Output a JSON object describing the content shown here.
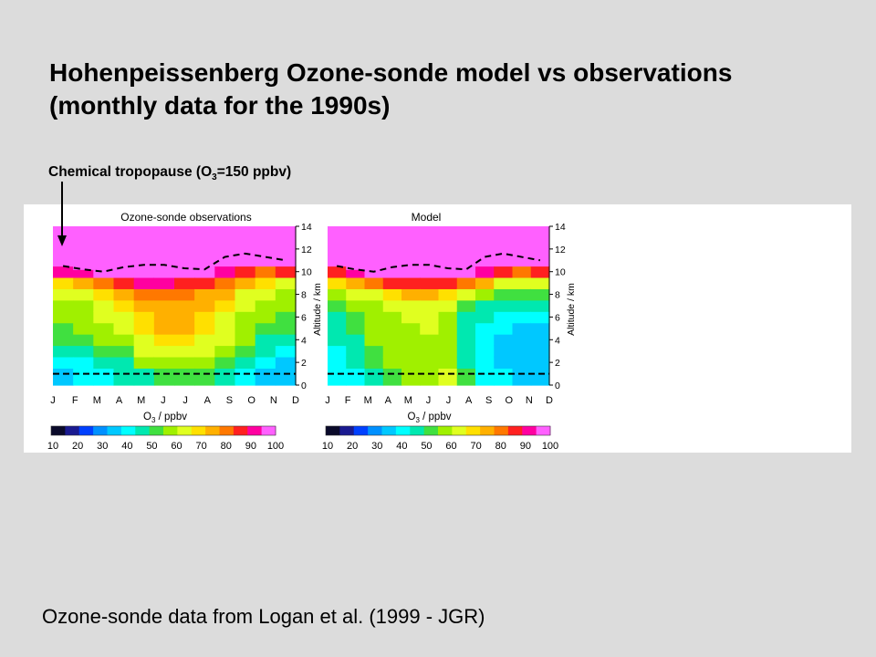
{
  "slide": {
    "title_line1": "Hohenpeissenberg Ozone-sonde model vs observations",
    "title_line2": "(monthly data for the 1990s)",
    "tropopause_caption_pre": "Chemical tropopause (O",
    "tropopause_caption_sub": "3",
    "tropopause_caption_post": "=150 ppbv)",
    "source_note": "Ozone-sonde data from Logan et al. (1999 - JGR)"
  },
  "colors": {
    "background": "#dcdcdc",
    "panel": "#ffffff",
    "colorbar": [
      "#0a0a2a",
      "#1a1a90",
      "#0040ff",
      "#0090ff",
      "#00c8ff",
      "#00ffff",
      "#00e8b0",
      "#40e040",
      "#a0f000",
      "#e0ff20",
      "#ffe000",
      "#ffb000",
      "#ff7800",
      "#ff2020",
      "#ff00a0",
      "#ff60ff"
    ]
  },
  "chart_data": [
    {
      "type": "heatmap",
      "title": "Ozone-sonde observations",
      "xlabel_pre": "O",
      "xlabel_sub": "3",
      "xlabel_post": " / ppbv",
      "ylabel": "Altitude / km",
      "x_ticks": [
        "J",
        "F",
        "M",
        "A",
        "M",
        "J",
        "J",
        "A",
        "S",
        "O",
        "N",
        "D"
      ],
      "y_ticks": [
        "0",
        "2",
        "4",
        "6",
        "8",
        "10",
        "12",
        "14"
      ],
      "ylim": [
        0,
        14
      ],
      "colorbar_ticks": [
        "10",
        "20",
        "30",
        "40",
        "50",
        "60",
        "70",
        "80",
        "90",
        "100"
      ],
      "colorbar_range": [
        10,
        100
      ],
      "tropopause_km": [
        10.5,
        10.2,
        10.0,
        10.4,
        10.6,
        10.6,
        10.3,
        10.2,
        11.3,
        11.6,
        11.3,
        11.0
      ],
      "surface_line_km": 1.0,
      "fields": {
        "altitudes_km": [
          1,
          2,
          3,
          4,
          5,
          6,
          7,
          8,
          9,
          10,
          11
        ],
        "values_ppbv": [
          [
            38,
            40,
            45,
            50,
            52,
            55,
            58,
            62,
            70,
            90,
            100
          ],
          [
            40,
            42,
            47,
            52,
            55,
            58,
            60,
            65,
            75,
            92,
            100
          ],
          [
            42,
            45,
            50,
            55,
            58,
            62,
            65,
            70,
            82,
            95,
            100
          ],
          [
            45,
            48,
            54,
            58,
            62,
            65,
            68,
            75,
            88,
            98,
            100
          ],
          [
            48,
            55,
            62,
            66,
            68,
            70,
            72,
            78,
            90,
            100,
            100
          ],
          [
            50,
            58,
            65,
            70,
            72,
            74,
            75,
            80,
            90,
            100,
            100
          ],
          [
            52,
            60,
            66,
            70,
            72,
            73,
            74,
            78,
            88,
            100,
            100
          ],
          [
            50,
            58,
            62,
            66,
            68,
            70,
            72,
            76,
            85,
            98,
            100
          ],
          [
            45,
            52,
            58,
            62,
            64,
            66,
            68,
            72,
            80,
            92,
            100
          ],
          [
            40,
            45,
            50,
            55,
            58,
            60,
            62,
            66,
            72,
            85,
            100
          ],
          [
            36,
            40,
            44,
            48,
            52,
            55,
            58,
            62,
            68,
            80,
            95
          ],
          [
            35,
            38,
            42,
            46,
            50,
            53,
            56,
            60,
            66,
            85,
            100
          ]
        ]
      }
    },
    {
      "type": "heatmap",
      "title": "Model",
      "xlabel_pre": "O",
      "xlabel_sub": "3",
      "xlabel_post": " / ppbv",
      "ylabel": "Altitude / km",
      "x_ticks": [
        "J",
        "F",
        "M",
        "A",
        "M",
        "J",
        "J",
        "A",
        "S",
        "O",
        "N",
        "D"
      ],
      "y_ticks": [
        "0",
        "2",
        "4",
        "6",
        "8",
        "10",
        "12",
        "14"
      ],
      "ylim": [
        0,
        14
      ],
      "colorbar_ticks": [
        "10",
        "20",
        "30",
        "40",
        "50",
        "60",
        "70",
        "80",
        "90",
        "100"
      ],
      "colorbar_range": [
        10,
        100
      ],
      "tropopause_km": [
        10.5,
        10.2,
        10.0,
        10.4,
        10.6,
        10.6,
        10.3,
        10.2,
        11.3,
        11.6,
        11.3,
        11.0
      ],
      "surface_line_km": 1.0,
      "fields": {
        "altitudes_km": [
          1,
          2,
          3,
          4,
          5,
          6,
          7,
          8,
          9,
          10,
          11
        ],
        "values_ppbv": [
          [
            40,
            40,
            42,
            44,
            46,
            48,
            52,
            58,
            68,
            88,
            100
          ],
          [
            42,
            44,
            46,
            48,
            50,
            52,
            55,
            62,
            75,
            92,
            100
          ],
          [
            48,
            52,
            54,
            55,
            56,
            58,
            60,
            66,
            80,
            95,
            100
          ],
          [
            52,
            55,
            56,
            57,
            58,
            60,
            62,
            68,
            85,
            98,
            100
          ],
          [
            56,
            58,
            58,
            60,
            60,
            62,
            64,
            72,
            88,
            100,
            100
          ],
          [
            58,
            60,
            60,
            60,
            62,
            64,
            66,
            74,
            88,
            100,
            100
          ],
          [
            62,
            58,
            56,
            56,
            58,
            60,
            62,
            70,
            86,
            100,
            100
          ],
          [
            52,
            46,
            44,
            45,
            46,
            48,
            52,
            62,
            78,
            96,
            100
          ],
          [
            42,
            40,
            40,
            40,
            42,
            44,
            48,
            58,
            72,
            90,
            100
          ],
          [
            40,
            38,
            38,
            38,
            40,
            42,
            46,
            54,
            66,
            85,
            100
          ],
          [
            38,
            36,
            36,
            36,
            38,
            40,
            44,
            50,
            62,
            80,
            95
          ],
          [
            38,
            36,
            36,
            36,
            38,
            40,
            44,
            52,
            64,
            85,
            100
          ]
        ]
      }
    }
  ]
}
